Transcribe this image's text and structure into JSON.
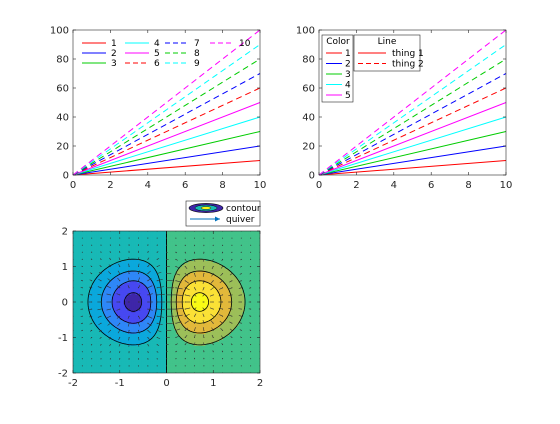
{
  "chart_data": [
    {
      "type": "line",
      "x": [
        0,
        10
      ],
      "series": [
        {
          "name": "1",
          "slope": 1,
          "color": "#ff0000",
          "dash": false
        },
        {
          "name": "2",
          "slope": 2,
          "color": "#0000ff",
          "dash": false
        },
        {
          "name": "3",
          "slope": 3,
          "color": "#00cc00",
          "dash": false
        },
        {
          "name": "4",
          "slope": 4,
          "color": "#00ffff",
          "dash": false
        },
        {
          "name": "5",
          "slope": 5,
          "color": "#ff00ff",
          "dash": false
        },
        {
          "name": "6",
          "slope": 6,
          "color": "#ff0000",
          "dash": true
        },
        {
          "name": "7",
          "slope": 7,
          "color": "#0000ff",
          "dash": true
        },
        {
          "name": "8",
          "slope": 8,
          "color": "#00cc00",
          "dash": true
        },
        {
          "name": "9",
          "slope": 9,
          "color": "#00ffff",
          "dash": true
        },
        {
          "name": "10",
          "slope": 10,
          "color": "#ff00ff",
          "dash": true
        }
      ],
      "xlim": [
        0,
        10
      ],
      "ylim": [
        0,
        100
      ],
      "xticks": [
        "0",
        "2",
        "4",
        "6",
        "8",
        "10"
      ],
      "yticks": [
        "0",
        "20",
        "40",
        "60",
        "80",
        "100"
      ],
      "legend": "top-left, 4 columns"
    },
    {
      "type": "line",
      "x": [
        0,
        10
      ],
      "series": [
        {
          "name": "1",
          "slope": 1,
          "color": "#ff0000",
          "dash": false
        },
        {
          "name": "2",
          "slope": 2,
          "color": "#0000ff",
          "dash": false
        },
        {
          "name": "3",
          "slope": 3,
          "color": "#00cc00",
          "dash": false
        },
        {
          "name": "4",
          "slope": 4,
          "color": "#00ffff",
          "dash": false
        },
        {
          "name": "5",
          "slope": 5,
          "color": "#ff00ff",
          "dash": false
        },
        {
          "name": "",
          "slope": 6,
          "color": "#ff0000",
          "dash": true
        },
        {
          "name": "",
          "slope": 7,
          "color": "#0000ff",
          "dash": true
        },
        {
          "name": "",
          "slope": 8,
          "color": "#00cc00",
          "dash": true
        },
        {
          "name": "",
          "slope": 9,
          "color": "#00ffff",
          "dash": true
        },
        {
          "name": "",
          "slope": 10,
          "color": "#ff00ff",
          "dash": true
        }
      ],
      "xlim": [
        0,
        10
      ],
      "ylim": [
        0,
        100
      ],
      "xticks": [
        "0",
        "2",
        "4",
        "6",
        "8",
        "10"
      ],
      "yticks": [
        "0",
        "20",
        "40",
        "60",
        "80",
        "100"
      ],
      "legend_color": {
        "title": "Color",
        "entries": [
          "1",
          "2",
          "3",
          "4",
          "5"
        ]
      },
      "legend_line": {
        "title": "Line",
        "entries": [
          {
            "label": "thing 1",
            "dash": false
          },
          {
            "label": "thing 2",
            "dash": true
          }
        ]
      }
    },
    {
      "type": "contour",
      "function": "x*exp(-x^2-y^2)",
      "xlim": [
        -2,
        2
      ],
      "ylim": [
        -2,
        2
      ],
      "xticks": [
        "-2",
        "-1",
        "0",
        "1",
        "2"
      ],
      "yticks": [
        "-2",
        "-1",
        "0",
        "1",
        "2"
      ],
      "levels": [
        -0.4,
        -0.3,
        -0.2,
        -0.1,
        0,
        0.1,
        0.2,
        0.3,
        0.4
      ],
      "colormap": [
        "#3e26a8",
        "#4748f1",
        "#2e87f7",
        "#0ba8dc",
        "#18b9b6",
        "#42c38a",
        "#9cbf59",
        "#e2b83b",
        "#fbe136",
        "#f9fb15"
      ],
      "legend": [
        {
          "label": "contour"
        },
        {
          "label": "quiver"
        }
      ],
      "legend_placement": "north-east outside"
    }
  ]
}
